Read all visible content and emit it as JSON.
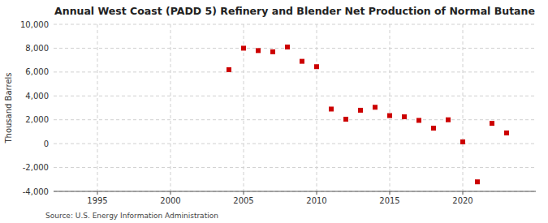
{
  "chart_data": {
    "type": "scatter",
    "title": "Annual West Coast (PADD 5) Refinery and Blender Net Production of Normal Butane",
    "ylabel": "Thousand Barrels",
    "source": "Source: U.S. Energy Information Administration",
    "x": [
      2004,
      2005,
      2006,
      2007,
      2008,
      2009,
      2010,
      2011,
      2012,
      2013,
      2014,
      2015,
      2016,
      2017,
      2018,
      2019,
      2020,
      2021,
      2022,
      2023
    ],
    "values": [
      6200,
      8000,
      7800,
      7700,
      8100,
      6900,
      6450,
      2900,
      2050,
      2800,
      3050,
      2350,
      2250,
      1950,
      1300,
      2000,
      150,
      -3200,
      1700,
      900
    ],
    "color": "#cc0000",
    "marker": "square",
    "xlim": [
      1992,
      2025
    ],
    "ylim": [
      -4000,
      10000
    ],
    "xticks": [
      1995,
      2000,
      2005,
      2010,
      2015,
      2020
    ],
    "yticks": [
      {
        "value": -4000,
        "label": "-4,000"
      },
      {
        "value": -2000,
        "label": "-2,000"
      },
      0,
      {
        "value": 2000,
        "label": "2,000"
      },
      {
        "value": 4000,
        "label": "4,000"
      },
      {
        "value": 6000,
        "label": "6,000"
      },
      {
        "value": 8000,
        "label": "8,000"
      },
      {
        "value": 10000,
        "label": "10,000"
      }
    ],
    "grid": true
  }
}
